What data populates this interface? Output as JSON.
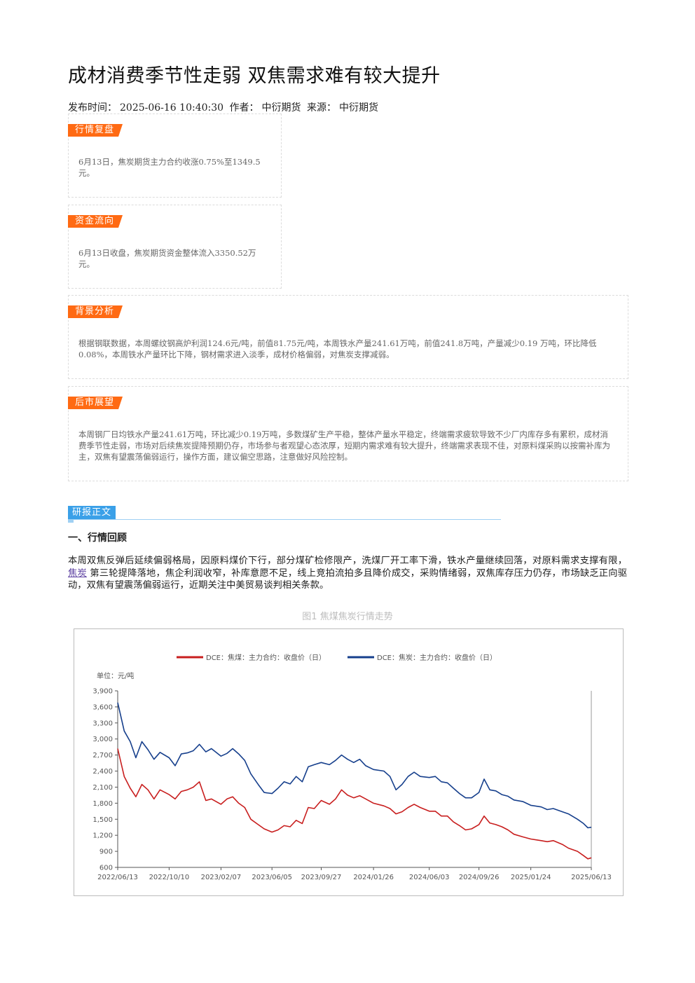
{
  "article": {
    "title": "成材消费季节性走弱 双焦需求难有较大提升",
    "publish_label": "发布时间：",
    "publish_time": "2025-06-16 10:40:30",
    "author_label": "作者：",
    "author": "中衍期货",
    "source_label": "来源：",
    "source": "中衍期货"
  },
  "boxes": {
    "market_review": {
      "tag": "行情复盘",
      "text": "6月13日，焦炭期货主力合约收涨0.75%至1349.5元。"
    },
    "capital_flow": {
      "tag": "资金流向",
      "text": "6月13日收盘，焦炭期货资金整体流入3350.52万元。"
    },
    "background": {
      "tag": "背景分析",
      "text": "根据钢联数据，本周螺纹钢高炉利润124.6元/吨，前值81.75元/吨，本周铁水产量241.61万吨，前值241.8万吨，产量减少0.19 万吨，环比降低0.08%，本周铁水产量环比下降，钢材需求进入淡季，成材价格偏弱，对焦炭支撑减弱。"
    },
    "outlook": {
      "tag": "后市展望",
      "text": "本周钢厂日均铁水产量241.61万吨，环比减少0.19万吨，多数煤矿生产平稳，整体产量水平稳定，终端需求疲软导致不少厂内库存多有累积，成材消费季节性走弱，市场对后续焦炭提降预期仍存，市场参与者观望心态浓厚，短期内需求难有较大提升，终端需求表现不佳，对原料煤采购以按需补库为主，双焦有望震荡偏弱运行，操作方面，建议偏空思路，注意做好风险控制。"
    }
  },
  "report": {
    "section_tag": "研报正文",
    "heading": "一、行情回顾",
    "para_part1": "本周双焦反弹后延续偏弱格局，因原料煤价下行，部分煤矿检修限产，洗煤厂开工率下滑，铁水产量继续回落，对原料需求支撑有限，",
    "para_link": "焦炭",
    "para_part2": "第三轮提降落地，焦企利润收窄，补库意愿不足，线上竞拍流拍多且降价成交，采购情绪弱，双焦库存压力仍存，市场缺乏正向驱动，双焦有望震荡偏弱运行，近期关注中美贸易谈判相关条款。",
    "figure_caption": "图1 焦煤焦炭行情走势"
  },
  "chart_data": {
    "type": "line",
    "unit_label": "单位：元/吨",
    "ylim": [
      600,
      3900
    ],
    "yticks": [
      "3,900",
      "3,600",
      "3,300",
      "3,000",
      "2,700",
      "2,400",
      "2,100",
      "1,800",
      "1,500",
      "1,200",
      "900",
      "600"
    ],
    "ytick_values": [
      3900,
      3600,
      3300,
      3000,
      2700,
      2400,
      2100,
      1800,
      1500,
      1200,
      900,
      600
    ],
    "xticks": [
      "2022/06/13",
      "2022/10/10",
      "2023/02/07",
      "2023/06/05",
      "2023/09/27",
      "2024/01/26",
      "2024/06/03",
      "2024/09/26",
      "2025/01/24",
      "2025/06/13"
    ],
    "legend_position": "top",
    "grid": false,
    "series": [
      {
        "name": "DCE：焦煤：主力合约：收盘价（日）",
        "color": "#c81e1e",
        "points": [
          [
            "2022/06/13",
            2820
          ],
          [
            "2022/06/28",
            2300
          ],
          [
            "2022/07/12",
            2080
          ],
          [
            "2022/07/25",
            1920
          ],
          [
            "2022/08/08",
            2150
          ],
          [
            "2022/08/22",
            2050
          ],
          [
            "2022/09/05",
            1880
          ],
          [
            "2022/09/19",
            2050
          ],
          [
            "2022/10/10",
            1960
          ],
          [
            "2022/10/24",
            1880
          ],
          [
            "2022/11/07",
            2020
          ],
          [
            "2022/11/21",
            2050
          ],
          [
            "2022/12/05",
            2100
          ],
          [
            "2022/12/19",
            2200
          ],
          [
            "2023/01/03",
            1850
          ],
          [
            "2023/01/16",
            1880
          ],
          [
            "2023/02/07",
            1780
          ],
          [
            "2023/02/21",
            1880
          ],
          [
            "2023/03/06",
            1920
          ],
          [
            "2023/03/20",
            1800
          ],
          [
            "2023/04/03",
            1720
          ],
          [
            "2023/04/17",
            1500
          ],
          [
            "2023/05/04",
            1400
          ],
          [
            "2023/05/18",
            1320
          ],
          [
            "2023/06/05",
            1260
          ],
          [
            "2023/06/19",
            1300
          ],
          [
            "2023/07/03",
            1380
          ],
          [
            "2023/07/17",
            1360
          ],
          [
            "2023/07/31",
            1480
          ],
          [
            "2023/08/14",
            1420
          ],
          [
            "2023/08/28",
            1720
          ],
          [
            "2023/09/11",
            1700
          ],
          [
            "2023/09/27",
            1850
          ],
          [
            "2023/10/16",
            1780
          ],
          [
            "2023/10/30",
            1880
          ],
          [
            "2023/11/13",
            2050
          ],
          [
            "2023/11/27",
            1950
          ],
          [
            "2023/12/11",
            1900
          ],
          [
            "2023/12/25",
            1940
          ],
          [
            "2024/01/08",
            1880
          ],
          [
            "2024/01/26",
            1800
          ],
          [
            "2024/02/19",
            1750
          ],
          [
            "2024/03/04",
            1700
          ],
          [
            "2024/03/18",
            1600
          ],
          [
            "2024/04/01",
            1640
          ],
          [
            "2024/04/15",
            1720
          ],
          [
            "2024/04/29",
            1780
          ],
          [
            "2024/05/13",
            1720
          ],
          [
            "2024/06/03",
            1650
          ],
          [
            "2024/06/17",
            1650
          ],
          [
            "2024/07/01",
            1560
          ],
          [
            "2024/07/15",
            1560
          ],
          [
            "2024/07/29",
            1450
          ],
          [
            "2024/08/12",
            1380
          ],
          [
            "2024/08/26",
            1300
          ],
          [
            "2024/09/09",
            1320
          ],
          [
            "2024/09/26",
            1400
          ],
          [
            "2024/10/08",
            1560
          ],
          [
            "2024/10/21",
            1430
          ],
          [
            "2024/11/04",
            1400
          ],
          [
            "2024/11/18",
            1360
          ],
          [
            "2024/12/02",
            1300
          ],
          [
            "2024/12/16",
            1220
          ],
          [
            "2025/01/06",
            1170
          ],
          [
            "2025/01/24",
            1130
          ],
          [
            "2025/02/17",
            1100
          ],
          [
            "2025/03/03",
            1080
          ],
          [
            "2025/03/17",
            1100
          ],
          [
            "2025/04/07",
            1030
          ],
          [
            "2025/04/21",
            960
          ],
          [
            "2025/05/12",
            900
          ],
          [
            "2025/05/26",
            820
          ],
          [
            "2025/06/05",
            760
          ],
          [
            "2025/06/13",
            780
          ]
        ]
      },
      {
        "name": "DCE：焦炭：主力合约：收盘价（日）",
        "color": "#163f8c",
        "points": [
          [
            "2022/06/13",
            3680
          ],
          [
            "2022/06/28",
            3150
          ],
          [
            "2022/07/12",
            2950
          ],
          [
            "2022/07/25",
            2650
          ],
          [
            "2022/08/08",
            2950
          ],
          [
            "2022/08/22",
            2800
          ],
          [
            "2022/09/05",
            2620
          ],
          [
            "2022/09/19",
            2750
          ],
          [
            "2022/10/10",
            2650
          ],
          [
            "2022/10/24",
            2500
          ],
          [
            "2022/11/07",
            2720
          ],
          [
            "2022/11/21",
            2740
          ],
          [
            "2022/12/05",
            2780
          ],
          [
            "2022/12/19",
            2900
          ],
          [
            "2023/01/03",
            2760
          ],
          [
            "2023/01/16",
            2820
          ],
          [
            "2023/02/07",
            2680
          ],
          [
            "2023/02/21",
            2730
          ],
          [
            "2023/03/06",
            2820
          ],
          [
            "2023/03/20",
            2720
          ],
          [
            "2023/04/03",
            2600
          ],
          [
            "2023/04/17",
            2350
          ],
          [
            "2023/05/04",
            2150
          ],
          [
            "2023/05/18",
            2000
          ],
          [
            "2023/06/05",
            1980
          ],
          [
            "2023/06/19",
            2080
          ],
          [
            "2023/07/03",
            2200
          ],
          [
            "2023/07/17",
            2160
          ],
          [
            "2023/07/31",
            2300
          ],
          [
            "2023/08/14",
            2200
          ],
          [
            "2023/08/28",
            2480
          ],
          [
            "2023/09/11",
            2520
          ],
          [
            "2023/09/27",
            2560
          ],
          [
            "2023/10/16",
            2520
          ],
          [
            "2023/10/30",
            2600
          ],
          [
            "2023/11/13",
            2700
          ],
          [
            "2023/11/27",
            2620
          ],
          [
            "2023/12/11",
            2560
          ],
          [
            "2023/12/25",
            2620
          ],
          [
            "2024/01/08",
            2500
          ],
          [
            "2024/01/26",
            2430
          ],
          [
            "2024/02/19",
            2400
          ],
          [
            "2024/03/04",
            2300
          ],
          [
            "2024/03/18",
            2050
          ],
          [
            "2024/04/01",
            2150
          ],
          [
            "2024/04/15",
            2300
          ],
          [
            "2024/04/29",
            2380
          ],
          [
            "2024/05/13",
            2300
          ],
          [
            "2024/06/03",
            2280
          ],
          [
            "2024/06/17",
            2300
          ],
          [
            "2024/07/01",
            2200
          ],
          [
            "2024/07/15",
            2180
          ],
          [
            "2024/07/29",
            2080
          ],
          [
            "2024/08/12",
            1980
          ],
          [
            "2024/08/26",
            1900
          ],
          [
            "2024/09/09",
            1900
          ],
          [
            "2024/09/26",
            2000
          ],
          [
            "2024/10/08",
            2250
          ],
          [
            "2024/10/21",
            2050
          ],
          [
            "2024/11/04",
            2030
          ],
          [
            "2024/11/18",
            1960
          ],
          [
            "2024/12/02",
            1930
          ],
          [
            "2024/12/16",
            1860
          ],
          [
            "2025/01/06",
            1830
          ],
          [
            "2025/01/24",
            1760
          ],
          [
            "2025/02/17",
            1730
          ],
          [
            "2025/03/03",
            1680
          ],
          [
            "2025/03/17",
            1700
          ],
          [
            "2025/04/07",
            1640
          ],
          [
            "2025/04/21",
            1600
          ],
          [
            "2025/05/12",
            1500
          ],
          [
            "2025/05/26",
            1420
          ],
          [
            "2025/06/05",
            1340
          ],
          [
            "2025/06/13",
            1350
          ]
        ]
      }
    ]
  }
}
